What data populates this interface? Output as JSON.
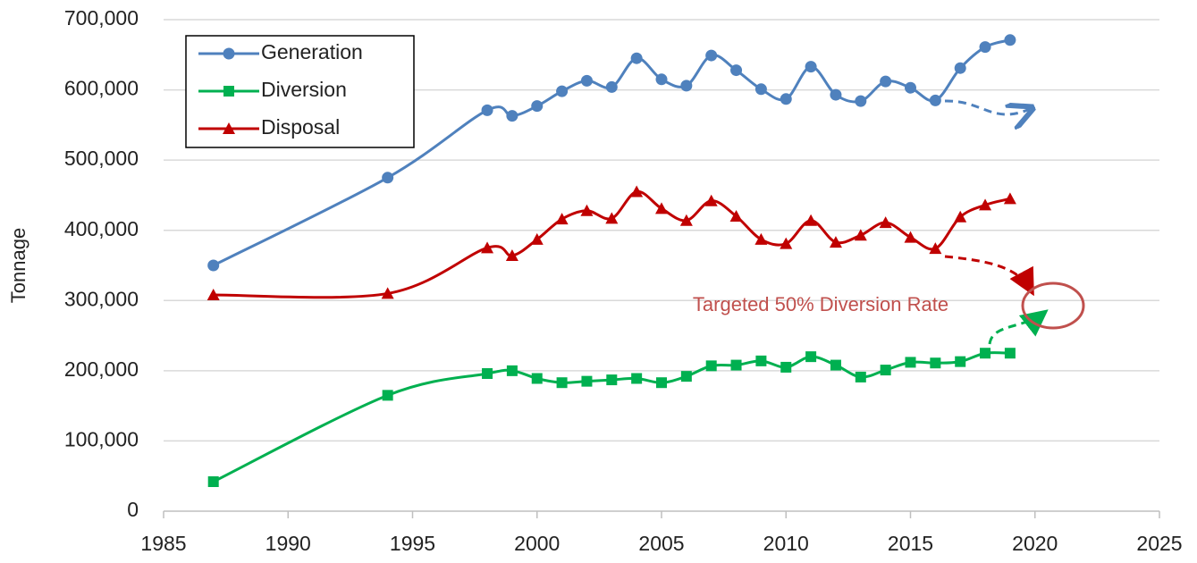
{
  "chart_data": {
    "type": "line",
    "y_label": "Tonnage",
    "annotation": "Targeted 50% Diversion Rate",
    "xlim": [
      1985,
      2025
    ],
    "xticks": [
      1985,
      1990,
      1995,
      2000,
      2005,
      2010,
      2015,
      2020,
      2025
    ],
    "ylim": [
      0,
      700000
    ],
    "yticks": [
      0,
      {
        "value": 100000,
        "label": "100,000"
      },
      {
        "value": 200000,
        "label": "200,000"
      },
      {
        "value": 300000,
        "label": "300,000"
      },
      {
        "value": 400000,
        "label": "400,000"
      },
      {
        "value": 500000,
        "label": "500,000"
      },
      {
        "value": 600000,
        "label": "600,000"
      },
      {
        "value": 700000,
        "label": "700,000"
      }
    ],
    "grid": true,
    "legend": "upper left",
    "x": [
      1987,
      1994,
      1998,
      1999,
      2000,
      2001,
      2002,
      2003,
      2004,
      2005,
      2006,
      2007,
      2008,
      2009,
      2010,
      2011,
      2012,
      2013,
      2014,
      2015,
      2016,
      2017,
      2018,
      2019
    ],
    "series": [
      {
        "name": "Generation",
        "color": "#4f81bd",
        "marker": "circle",
        "values": [
          350000,
          475000,
          571000,
          563000,
          577000,
          598000,
          613000,
          604000,
          645000,
          615000,
          606000,
          649000,
          628000,
          601000,
          587000,
          633000,
          593000,
          584000,
          612000,
          603000,
          585000,
          631000,
          661000,
          671000
        ]
      },
      {
        "name": "Diversion",
        "color": "#00b050",
        "marker": "square",
        "values": [
          42000,
          165000,
          196000,
          200000,
          189000,
          183000,
          185000,
          187000,
          189000,
          183000,
          192000,
          207000,
          208000,
          214000,
          205000,
          220000,
          208000,
          191000,
          201000,
          212000,
          211000,
          213000,
          225000,
          225000
        ]
      },
      {
        "name": "Disposal",
        "color": "#c00000",
        "marker": "triangle",
        "values": [
          308000,
          310000,
          375000,
          364000,
          387000,
          416000,
          428000,
          417000,
          455000,
          431000,
          414000,
          442000,
          420000,
          387000,
          381000,
          414000,
          383000,
          393000,
          411000,
          390000,
          374000,
          419000,
          436000,
          445000
        ]
      }
    ]
  }
}
